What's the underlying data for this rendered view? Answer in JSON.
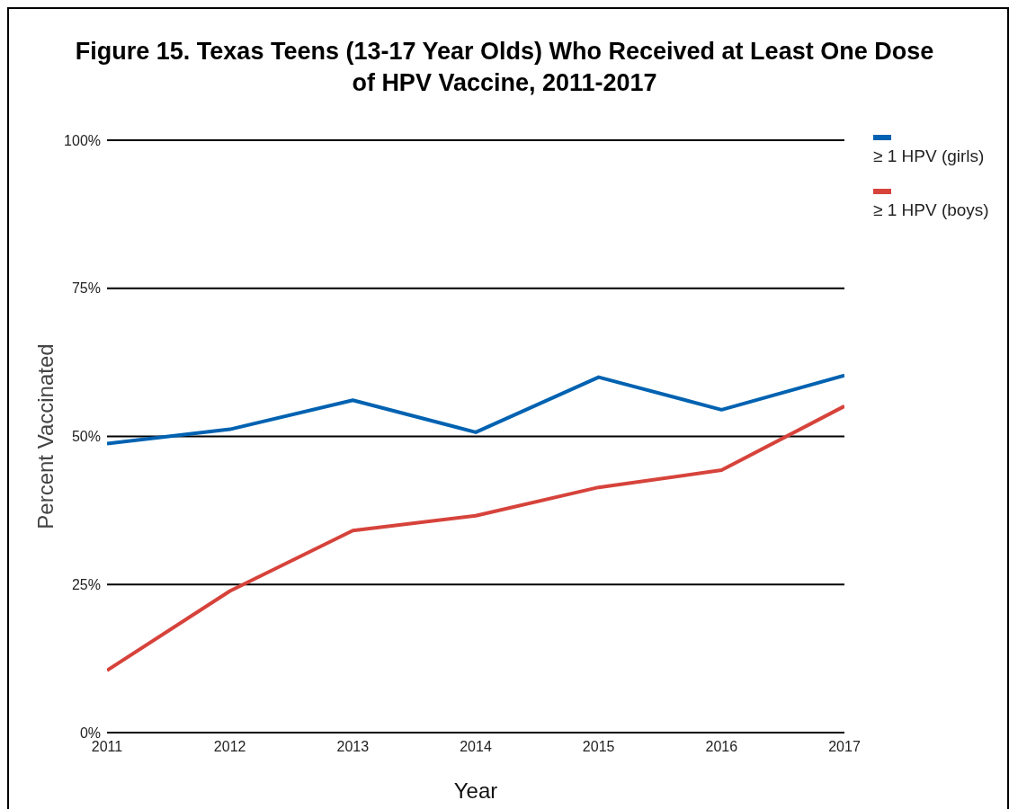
{
  "chart_data": {
    "type": "line",
    "title": "Figure 15. Texas Teens (13-17 Year Olds) Who Received at Least One Dose of HPV Vaccine, 2011-2017",
    "xlabel": "Year",
    "ylabel": "Percent Vaccinated",
    "x": [
      2011,
      2012,
      2013,
      2014,
      2015,
      2016,
      2017
    ],
    "xlim": [
      2011,
      2017
    ],
    "xticks": [
      2011,
      2012,
      2013,
      2014,
      2015,
      2016,
      2017
    ],
    "ylim": [
      0,
      100
    ],
    "yticks": [
      {
        "value": 0,
        "label": "0%"
      },
      {
        "value": 25,
        "label": "25%"
      },
      {
        "value": 50,
        "label": "50%"
      },
      {
        "value": 75,
        "label": "75%"
      },
      {
        "value": 100,
        "label": "100%"
      }
    ],
    "series": [
      {
        "name": "≥ 1 HPV (girls)",
        "color": "#0062b1",
        "values": [
          48.8,
          51.2,
          56.1,
          50.7,
          60.0,
          54.5,
          60.3
        ]
      },
      {
        "name": "≥ 1 HPV (boys)",
        "color": "#d6433b",
        "values": [
          10.5,
          23.9,
          34.1,
          36.6,
          41.4,
          44.3,
          55.1
        ]
      }
    ],
    "grid": "y",
    "legend": "top right",
    "marker": "none",
    "line_style": "solid"
  }
}
